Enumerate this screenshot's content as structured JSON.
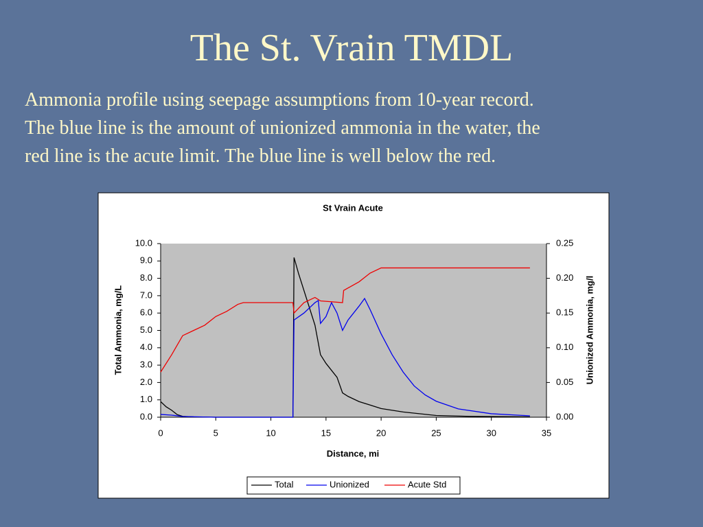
{
  "slide": {
    "title": "The St. Vrain TMDL",
    "lines": [
      "Ammonia profile using seepage assumptions from 10-year record.",
      "The blue line is the amount of unionized ammonia in the water, the",
      "red line is the acute limit.  The blue line is well below the red."
    ]
  },
  "chart_data": {
    "type": "line",
    "title": "St Vrain Acute",
    "xlabel": "Distance, mi",
    "ylabel": "Total Ammonia, mg/L",
    "y2label": "Unionized Ammonia, mg/l",
    "xlim": [
      0,
      35
    ],
    "xticks": [
      0,
      5,
      10,
      15,
      20,
      25,
      30,
      35
    ],
    "ylim": [
      0,
      10
    ],
    "yticks": [
      {
        "value": 0,
        "label": "0.0"
      },
      {
        "value": 1,
        "label": "1.0"
      },
      {
        "value": 2,
        "label": "2.0"
      },
      {
        "value": 3,
        "label": "3.0"
      },
      {
        "value": 4,
        "label": "4.0"
      },
      {
        "value": 5,
        "label": "5.0"
      },
      {
        "value": 6,
        "label": "6.0"
      },
      {
        "value": 7,
        "label": "7.0"
      },
      {
        "value": 8,
        "label": "8.0"
      },
      {
        "value": 9,
        "label": "9.0"
      },
      {
        "value": 10,
        "label": "10.0"
      }
    ],
    "y2lim": [
      0,
      0.25
    ],
    "y2ticks": [
      {
        "value": 0,
        "label": "0.00"
      },
      0.05,
      {
        "value": 0.1,
        "label": "0.10"
      },
      0.15,
      {
        "value": 0.2,
        "label": "0.20"
      },
      0.25
    ],
    "legend": "bottom",
    "series": [
      {
        "name": "Total",
        "color": "#000000",
        "x": [
          0,
          0.5,
          1,
          1.5,
          2,
          3,
          5,
          10,
          12,
          12.1,
          12.5,
          13,
          14,
          14.5,
          15,
          16,
          16.5,
          17,
          18,
          19,
          20,
          22,
          25,
          28,
          33.5
        ],
        "values": [
          0.9,
          0.6,
          0.4,
          0.15,
          0.05,
          0.02,
          0,
          0,
          0,
          9.2,
          8.3,
          7.3,
          5.3,
          3.6,
          3.1,
          2.3,
          1.4,
          1.2,
          0.9,
          0.7,
          0.5,
          0.3,
          0.1,
          0.05,
          0.02
        ]
      },
      {
        "name": "Unionized",
        "color": "#0000ee",
        "axis": "y2",
        "x": [
          0,
          1,
          2,
          5,
          12,
          12.1,
          13,
          14,
          14.3,
          14.5,
          15,
          15.5,
          16,
          16.5,
          17,
          18,
          18.5,
          19,
          20,
          21,
          22,
          23,
          24,
          25,
          27,
          30,
          33.5
        ],
        "values": [
          0.004,
          0.003,
          0.001,
          0,
          0,
          0.14,
          0.15,
          0.165,
          0.168,
          0.135,
          0.145,
          0.165,
          0.15,
          0.125,
          0.14,
          0.16,
          0.171,
          0.155,
          0.12,
          0.09,
          0.065,
          0.045,
          0.032,
          0.023,
          0.012,
          0.005,
          0.002
        ]
      },
      {
        "name": "Acute Std",
        "color": "#ee0000",
        "axis": "y2",
        "x": [
          0,
          1,
          2,
          3,
          4,
          5,
          6,
          7,
          7.5,
          12,
          12.1,
          13,
          14,
          14.5,
          16.5,
          16.6,
          18,
          19,
          20,
          33.5
        ],
        "values": [
          0.065,
          0.09,
          0.1175,
          0.125,
          0.1325,
          0.145,
          0.1525,
          0.1625,
          0.165,
          0.165,
          0.15,
          0.165,
          0.1725,
          0.1675,
          0.165,
          0.1825,
          0.195,
          0.2075,
          0.215,
          0.215
        ]
      }
    ]
  }
}
